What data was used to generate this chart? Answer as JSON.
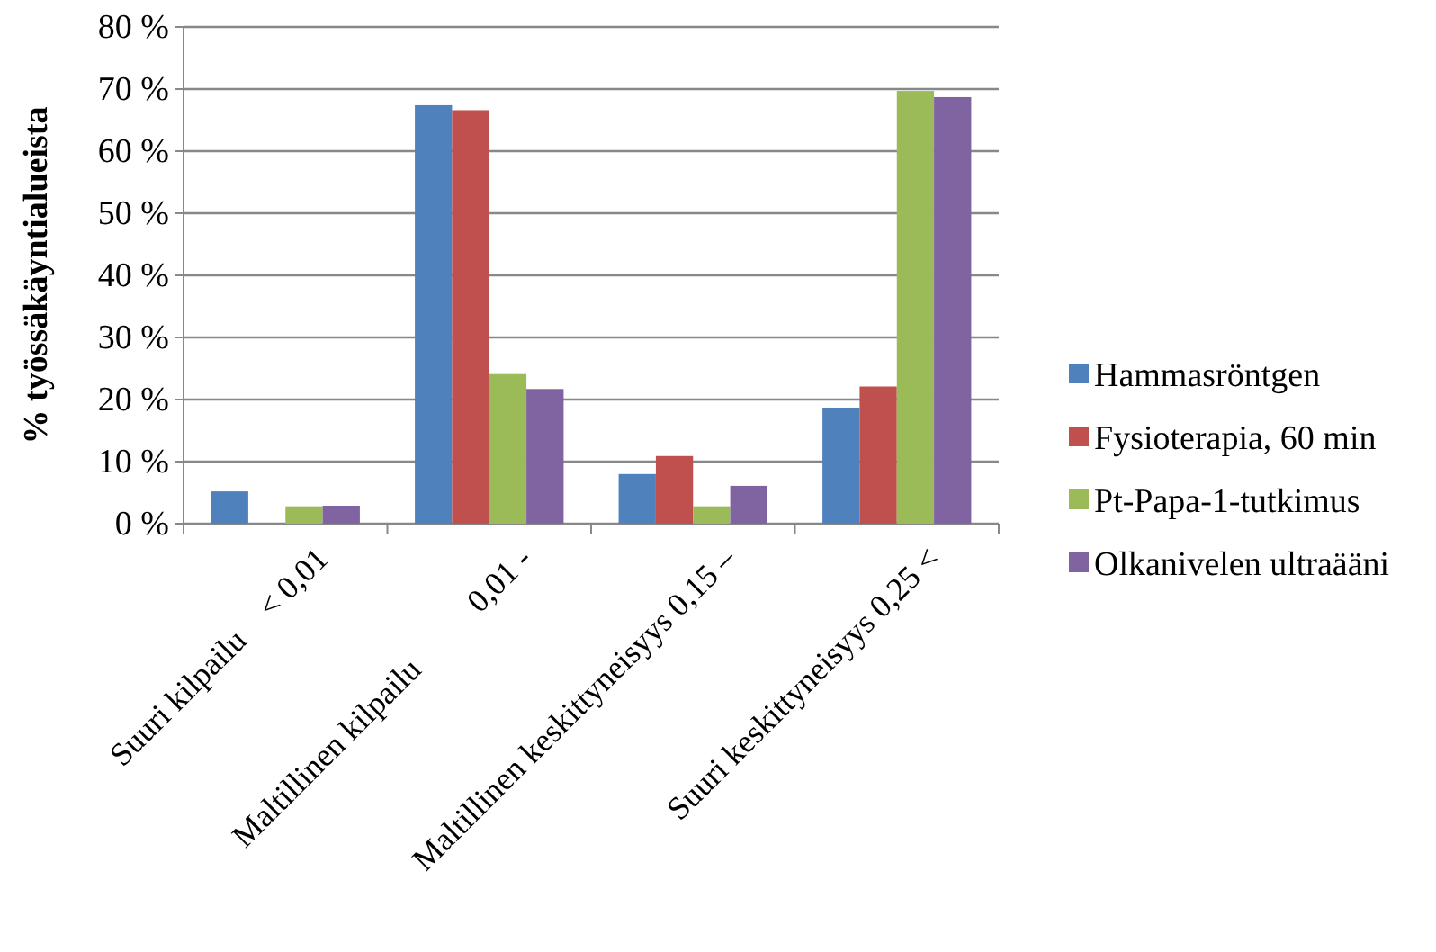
{
  "chart_data": {
    "type": "bar",
    "ylabel": "% työssäkäyntialueista",
    "categories": [
      "Suuri kilpailu    < 0,01",
      "Maltillinen kilpailu          0,01 -",
      "Maltillinen keskittyneisyys 0,15 –",
      "Suuri keskittyneisyys 0,25 <"
    ],
    "series": [
      {
        "name": "Hammasröntgen",
        "color": "#4f81bd",
        "values": [
          5.2,
          67.4,
          8.0,
          18.7
        ]
      },
      {
        "name": "Fysioterapia, 60 min",
        "color": "#c0504d",
        "values": [
          0,
          66.6,
          10.9,
          22.1
        ]
      },
      {
        "name": "Pt-Papa-1-tutkimus",
        "color": "#9bbb59",
        "values": [
          2.8,
          24.1,
          2.8,
          69.7
        ]
      },
      {
        "name": "Olkanivelen ultraääni",
        "color": "#8064a2",
        "values": [
          2.9,
          21.7,
          6.1,
          68.7
        ]
      }
    ],
    "ylim": [
      0,
      80
    ],
    "yticks": [
      {
        "value": 0,
        "label": "0 %"
      },
      {
        "value": 10,
        "label": "10 %"
      },
      {
        "value": 20,
        "label": "20 %"
      },
      {
        "value": 30,
        "label": "30 %"
      },
      {
        "value": 40,
        "label": "40 %"
      },
      {
        "value": 50,
        "label": "50 %"
      },
      {
        "value": 60,
        "label": "60 %"
      },
      {
        "value": 70,
        "label": "70 %"
      },
      {
        "value": 80,
        "label": "80 %"
      }
    ],
    "grid": "y",
    "legend": "right"
  }
}
